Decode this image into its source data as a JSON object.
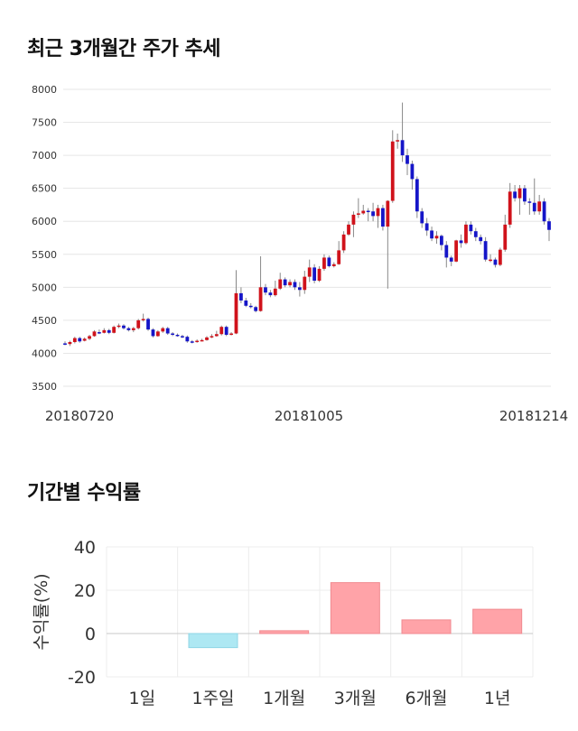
{
  "titles": {
    "price_trend": "최근 3개월간 주가 추세",
    "period_returns": "기간별 수익률"
  },
  "chart_data": [
    {
      "type": "candlestick",
      "ylim": [
        3500,
        8000
      ],
      "y_ticks": [
        "8000",
        "7500",
        "7000",
        "6500",
        "6000",
        "5500",
        "5000",
        "4500",
        "4000",
        "3500"
      ],
      "x_tick_labels": [
        "20180720",
        "20181005",
        "20181214"
      ],
      "grid": true,
      "colors": {
        "up": "#d0121b",
        "down": "#1515c8",
        "wick": "#888888"
      },
      "candles": [
        [
          4150,
          4140,
          4180,
          4120
        ],
        [
          4140,
          4170,
          4190,
          4110
        ],
        [
          4170,
          4230,
          4250,
          4150
        ],
        [
          4230,
          4180,
          4250,
          4160
        ],
        [
          4190,
          4220,
          4240,
          4180
        ],
        [
          4220,
          4260,
          4280,
          4200
        ],
        [
          4260,
          4330,
          4350,
          4250
        ],
        [
          4320,
          4310,
          4360,
          4290
        ],
        [
          4310,
          4350,
          4380,
          4300
        ],
        [
          4350,
          4310,
          4370,
          4290
        ],
        [
          4310,
          4400,
          4420,
          4300
        ],
        [
          4400,
          4420,
          4450,
          4380
        ],
        [
          4420,
          4380,
          4440,
          4360
        ],
        [
          4380,
          4350,
          4400,
          4330
        ],
        [
          4350,
          4380,
          4400,
          4320
        ],
        [
          4380,
          4500,
          4520,
          4360
        ],
        [
          4500,
          4520,
          4600,
          4480
        ],
        [
          4520,
          4360,
          4540,
          4340
        ],
        [
          4360,
          4260,
          4380,
          4240
        ],
        [
          4260,
          4330,
          4350,
          4250
        ],
        [
          4330,
          4380,
          4400,
          4310
        ],
        [
          4380,
          4300,
          4400,
          4280
        ],
        [
          4300,
          4280,
          4320,
          4260
        ],
        [
          4280,
          4260,
          4300,
          4250
        ],
        [
          4260,
          4250,
          4280,
          4230
        ],
        [
          4250,
          4180,
          4270,
          4160
        ],
        [
          4180,
          4170,
          4200,
          4150
        ],
        [
          4170,
          4190,
          4210,
          4160
        ],
        [
          4190,
          4200,
          4220,
          4180
        ],
        [
          4200,
          4240,
          4260,
          4190
        ],
        [
          4240,
          4260,
          4290,
          4230
        ],
        [
          4260,
          4290,
          4340,
          4250
        ],
        [
          4290,
          4400,
          4420,
          4270
        ],
        [
          4400,
          4280,
          4420,
          4260
        ],
        [
          4280,
          4300,
          4320,
          4270
        ],
        [
          4300,
          4910,
          5260,
          4290
        ],
        [
          4910,
          4800,
          5000,
          4760
        ],
        [
          4800,
          4720,
          4840,
          4700
        ],
        [
          4720,
          4700,
          4760,
          4680
        ],
        [
          4700,
          4640,
          4720,
          4620
        ],
        [
          4640,
          5000,
          5470,
          4630
        ],
        [
          5000,
          4920,
          5050,
          4880
        ],
        [
          4920,
          4880,
          4960,
          4850
        ],
        [
          4880,
          4980,
          5100,
          4860
        ],
        [
          4980,
          5120,
          5220,
          4960
        ],
        [
          5120,
          5030,
          5150,
          5000
        ],
        [
          5030,
          5080,
          5120,
          5000
        ],
        [
          5080,
          5000,
          5120,
          4960
        ],
        [
          5000,
          4960,
          5080,
          4860
        ],
        [
          4960,
          5160,
          5250,
          4900
        ],
        [
          5160,
          5300,
          5420,
          5080
        ],
        [
          5300,
          5100,
          5350,
          5060
        ],
        [
          5100,
          5280,
          5320,
          5080
        ],
        [
          5280,
          5450,
          5500,
          5250
        ],
        [
          5450,
          5320,
          5480,
          5300
        ],
        [
          5320,
          5350,
          5380,
          5300
        ],
        [
          5350,
          5560,
          5700,
          5340
        ],
        [
          5560,
          5800,
          5850,
          5520
        ],
        [
          5800,
          5950,
          6000,
          5780
        ],
        [
          5950,
          6100,
          6150,
          5760
        ],
        [
          6100,
          6120,
          6350,
          6050
        ],
        [
          6120,
          6160,
          6250,
          6100
        ],
        [
          6160,
          6150,
          6200,
          6000
        ],
        [
          6150,
          6080,
          6280,
          6000
        ],
        [
          6080,
          6200,
          6250,
          5900
        ],
        [
          6200,
          5920,
          6250,
          5860
        ],
        [
          5920,
          6310,
          6320,
          4980
        ],
        [
          6310,
          7210,
          7380,
          6280
        ],
        [
          7210,
          7230,
          7330,
          7100
        ],
        [
          7230,
          7000,
          7800,
          6900
        ],
        [
          7000,
          6870,
          7100,
          6700
        ],
        [
          6870,
          6640,
          6920,
          6480
        ],
        [
          6640,
          6150,
          6680,
          6050
        ],
        [
          6150,
          5970,
          6200,
          5900
        ],
        [
          5970,
          5860,
          6050,
          5780
        ],
        [
          5860,
          5740,
          5920,
          5700
        ],
        [
          5740,
          5780,
          5850,
          5660
        ],
        [
          5780,
          5640,
          5800,
          5560
        ],
        [
          5640,
          5450,
          5700,
          5300
        ],
        [
          5450,
          5390,
          5480,
          5320
        ],
        [
          5390,
          5710,
          5720,
          5380
        ],
        [
          5710,
          5670,
          5800,
          5600
        ],
        [
          5670,
          5950,
          6000,
          5650
        ],
        [
          5950,
          5850,
          6000,
          5800
        ],
        [
          5850,
          5760,
          5900,
          5700
        ],
        [
          5760,
          5700,
          5800,
          5650
        ],
        [
          5700,
          5420,
          5760,
          5390
        ],
        [
          5420,
          5420,
          5500,
          5380
        ],
        [
          5420,
          5340,
          5450,
          5300
        ],
        [
          5340,
          5570,
          5600,
          5320
        ],
        [
          5570,
          5950,
          6100,
          5540
        ],
        [
          5950,
          6450,
          6580,
          5900
        ],
        [
          6450,
          6350,
          6550,
          6300
        ],
        [
          6350,
          6500,
          6550,
          6100
        ],
        [
          6500,
          6300,
          6550,
          6250
        ],
        [
          6300,
          6280,
          6350,
          6100
        ],
        [
          6280,
          6150,
          6650,
          6100
        ],
        [
          6150,
          6300,
          6400,
          6100
        ],
        [
          6300,
          6000,
          6350,
          5950
        ],
        [
          6000,
          5870,
          6050,
          5700
        ]
      ]
    },
    {
      "type": "bar",
      "categories": [
        "1일",
        "1주일",
        "1개월",
        "3개월",
        "6개월",
        "1년"
      ],
      "values": [
        0,
        -6.5,
        1.3,
        23.5,
        6.3,
        11.2
      ],
      "ylabel": "수익률(%)",
      "ylim": [
        -20,
        40
      ],
      "y_ticks": [
        "40",
        "20",
        "0",
        "-20"
      ],
      "grid": true,
      "colors": {
        "positive": "#ffa3a8",
        "negative": "#aee8f3"
      }
    }
  ]
}
